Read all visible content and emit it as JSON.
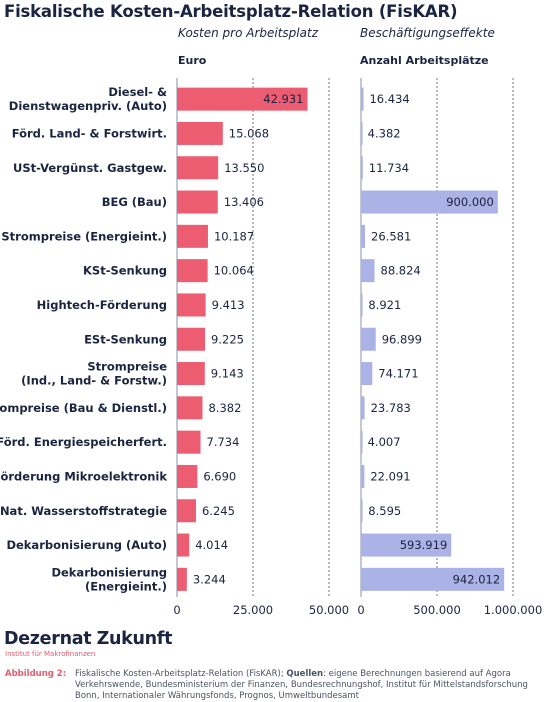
{
  "title": "Fiskalische Kosten-Arbeitsplatz-Relation (FisKAR)",
  "colors": {
    "left_bar": "#ec5d72",
    "right_bar": "#aab2e6",
    "grid": "#2b3566",
    "text": "#1b2440",
    "accent": "#e85a6e"
  },
  "chart_data": [
    {
      "type": "bar",
      "orientation": "horizontal",
      "title": "Kosten pro Arbeitsplatz",
      "xlabel": "Euro",
      "xlim": [
        0,
        50000
      ],
      "xticks": [
        0,
        25000,
        50000
      ],
      "xtick_labels": [
        "0",
        "25.000",
        "50.000"
      ],
      "categories": [
        "Diesel- & Dienstwagenpriv. (Auto)",
        "Förd. Land- & Forstwirt.",
        "USt-Vergünst. Gastgew.",
        "BEG (Bau)",
        "Strompreise (Energieint.)",
        "KSt-Senkung",
        "Hightech-Förderung",
        "ESt-Senkung",
        "Strompreise (Ind., Land- & Forstw.)",
        "Strompreise (Bau & Dienstl.)",
        "Förd. Energiespeicherfert.",
        "Förderung Mikroelektronik",
        "Nat. Wasserstoffstrategie",
        "Dekarbonisierung (Auto)",
        "Dekarbonisierung (Energieint.)"
      ],
      "values": [
        42931,
        15068,
        13550,
        13406,
        10187,
        10064,
        9413,
        9225,
        9143,
        8382,
        7734,
        6690,
        6245,
        4014,
        3244
      ],
      "value_labels": [
        "42.931",
        "15.068",
        "13.550",
        "13.406",
        "10.187",
        "10.064",
        "9.413",
        "9.225",
        "9.143",
        "8.382",
        "7.734",
        "6.690",
        "6.245",
        "4.014",
        "3.244"
      ],
      "grid": "vertical dotted"
    },
    {
      "type": "bar",
      "orientation": "horizontal",
      "title": "Beschäftigungseffekte",
      "xlabel": "Anzahl Arbeitsplätze",
      "xlim": [
        0,
        1000000
      ],
      "xticks": [
        0,
        500000,
        1000000
      ],
      "xtick_labels": [
        "0",
        "500.000",
        "1.000.000"
      ],
      "categories": [
        "Diesel- & Dienstwagenpriv. (Auto)",
        "Förd. Land- & Forstwirt.",
        "USt-Vergünst. Gastgew.",
        "BEG (Bau)",
        "Strompreise (Energieint.)",
        "KSt-Senkung",
        "Hightech-Förderung",
        "ESt-Senkung",
        "Strompreise (Ind., Land- & Forstw.)",
        "Strompreise (Bau & Dienstl.)",
        "Förd. Energiespeicherfert.",
        "Förderung Mikroelektronik",
        "Nat. Wasserstoffstrategie",
        "Dekarbonisierung (Auto)",
        "Dekarbonisierung (Energieint.)"
      ],
      "values": [
        16434,
        4382,
        11734,
        900000,
        26581,
        88824,
        8921,
        96899,
        74171,
        23783,
        4007,
        22091,
        8595,
        593919,
        942012
      ],
      "value_labels": [
        "16.434",
        "4.382",
        "11.734",
        "900.000",
        "26.581",
        "88.824",
        "8.921",
        "96.899",
        "74.171",
        "23.783",
        "4.007",
        "22.091",
        "8.595",
        "593.919",
        "942.012"
      ],
      "grid": "vertical dotted"
    }
  ],
  "category_display": [
    [
      "Diesel- &",
      "Dienstwagenpriv. (Auto)"
    ],
    [
      "Förd. Land- & Forstwirt."
    ],
    [
      "USt-Vergünst. Gastgew."
    ],
    [
      "BEG (Bau)"
    ],
    [
      "Strompreise (Energieint.)"
    ],
    [
      "KSt-Senkung"
    ],
    [
      "Hightech-Förderung"
    ],
    [
      "ESt-Senkung"
    ],
    [
      "Strompreise",
      "(Ind., Land- & Forstw.)"
    ],
    [
      "Strompreise (Bau & Dienstl.)"
    ],
    [
      "Förd. Energiespeicherfert."
    ],
    [
      "Förderung Mikroelektronik"
    ],
    [
      "Nat. Wasserstoffstrategie"
    ],
    [
      "Dekarbonisierung (Auto)"
    ],
    [
      "Dekarbonisierung",
      "(Energieint.)"
    ]
  ],
  "footer": {
    "brand_left": "Dezernat",
    "brand_right": "Zukunft",
    "brand_sub": "Institut für Makrofinanzen",
    "figure_label": "Abbildung 2:",
    "caption_prefix": "Fiskalische Kosten-Arbeitsplatz-Relation (FisKAR); ",
    "caption_bold": "Quellen",
    "caption_rest": ": eigene Berechnungen basierend auf Agora Verkehrswende, Bundesministerium der Finanzen, Bundesrechnungshof, Institut für Mittelstandsforschung Bonn, Internationaler Währungsfonds, Prognos, Umweltbundesamt"
  }
}
